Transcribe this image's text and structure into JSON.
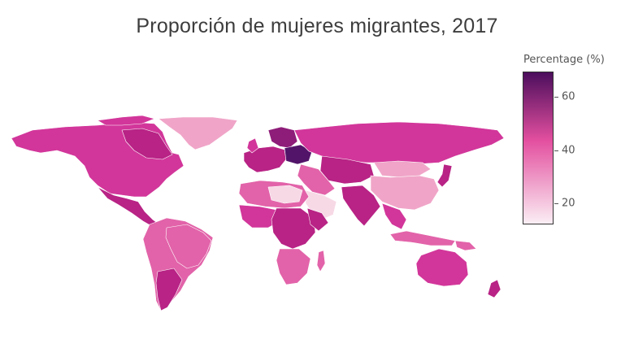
{
  "title": "Proporción de mujeres migrantes, 2017",
  "legend": {
    "title": "Percentage (%)",
    "ticks": [
      "60",
      "40",
      "20"
    ],
    "colors": {
      "low": "#fbeef4",
      "mid": "#e34f9f",
      "high": "#4b0e5c"
    }
  },
  "map_colors": {
    "very_light": "#f7d9e6",
    "light": "#f0a5c8",
    "medium_light": "#e263a9",
    "medium": "#d2369a",
    "medium_dark": "#b82385",
    "dark": "#8e1c79",
    "darkest": "#521469",
    "border": "#ffffff"
  },
  "chart_data": {
    "type": "choropleth",
    "title": "Proporción de mujeres migrantes, 2017",
    "colorbar_title": "Percentage (%)",
    "colorbar_ticks": [
      20,
      40,
      60
    ],
    "range": [
      12,
      68
    ],
    "regions": [
      {
        "name": "North America",
        "value": 52
      },
      {
        "name": "Greenland",
        "value": 38
      },
      {
        "name": "Central America",
        "value": 49
      },
      {
        "name": "South America",
        "value": 48
      },
      {
        "name": "Europe",
        "value": 54
      },
      {
        "name": "Eastern Europe",
        "value": 60
      },
      {
        "name": "Russia",
        "value": 52
      },
      {
        "name": "North Africa",
        "value": 42
      },
      {
        "name": "West Africa",
        "value": 46
      },
      {
        "name": "Central Africa",
        "value": 50
      },
      {
        "name": "Southern Africa",
        "value": 44
      },
      {
        "name": "Arabian Peninsula",
        "value": 25
      },
      {
        "name": "Central Asia",
        "value": 55
      },
      {
        "name": "Mongolia",
        "value": 35
      },
      {
        "name": "China",
        "value": 38
      },
      {
        "name": "South Asia",
        "value": 48
      },
      {
        "name": "Southeast Asia",
        "value": 45
      },
      {
        "name": "Japan",
        "value": 53
      },
      {
        "name": "Australia",
        "value": 50
      },
      {
        "name": "New Zealand",
        "value": 52
      }
    ]
  }
}
